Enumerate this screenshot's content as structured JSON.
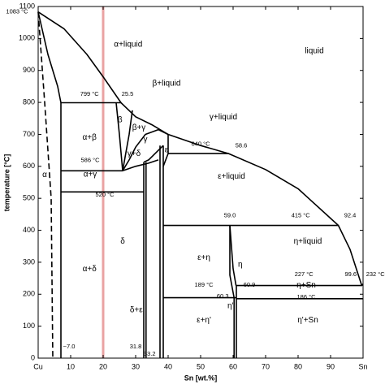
{
  "chart_data": {
    "type": "line",
    "xlabel": "Sn [wt.%]",
    "ylabel": "temperature [°C]",
    "xlim": [
      0,
      100
    ],
    "ylim": [
      0,
      1100
    ],
    "xticks": [
      {
        "value": 0,
        "label": "Cu"
      },
      10,
      20,
      30,
      40,
      50,
      60,
      70,
      80,
      90,
      {
        "value": 100,
        "label": "Sn"
      }
    ],
    "yticks": [
      0,
      100,
      200,
      300,
      400,
      500,
      600,
      700,
      800,
      900,
      1000,
      1100
    ],
    "grid": false,
    "vline": {
      "x": 20,
      "color": "#e9a3a3"
    },
    "series": [
      {
        "color": "#000000",
        "x": [
          0,
          8,
          15,
          20,
          25.5,
          30,
          35,
          40,
          50,
          58.6,
          70,
          80,
          92.4,
          96,
          99.6,
          100
        ],
        "values": [
          1083,
          1030,
          950,
          880,
          799,
          755,
          730,
          700,
          665,
          640,
          590,
          530,
          415,
          340,
          227,
          232
        ]
      },
      {
        "color": "#000000",
        "x": [
          0,
          3,
          6,
          7
        ],
        "values": [
          1083,
          950,
          850,
          799
        ]
      },
      {
        "color": "#000000",
        "x": [
          7,
          7
        ],
        "values": [
          799,
          0
        ]
      },
      {
        "color": "#000000",
        "dashed": true,
        "x": [
          0,
          2,
          4,
          4.5
        ],
        "values": [
          1083,
          800,
          500,
          0
        ]
      },
      {
        "color": "#000000",
        "x": [
          7,
          25.5
        ],
        "values": [
          799,
          799
        ]
      },
      {
        "color": "#000000",
        "x": [
          7,
          26
        ],
        "values": [
          586,
          586
        ]
      },
      {
        "color": "#000000",
        "x": [
          7,
          32.5
        ],
        "values": [
          520,
          520
        ]
      },
      {
        "color": "#000000",
        "x": [
          24,
          25,
          26
        ],
        "values": [
          799,
          700,
          586
        ]
      },
      {
        "color": "#000000",
        "x": [
          29,
          28,
          26
        ],
        "values": [
          775,
          700,
          586
        ]
      },
      {
        "color": "#000000",
        "x": [
          26,
          28,
          30,
          33,
          37,
          40
        ],
        "values": [
          586,
          620,
          660,
          700,
          715,
          700
        ]
      },
      {
        "color": "#000000",
        "x": [
          40,
          40,
          38.5
        ],
        "values": [
          700,
          640,
          600
        ]
      },
      {
        "color": "#000000",
        "x": [
          26,
          30,
          34,
          37
        ],
        "values": [
          586,
          600,
          610,
          620
        ]
      },
      {
        "color": "#000000",
        "x": [
          32.5,
          34,
          37,
          38.5
        ],
        "values": [
          613,
          620,
          650,
          665
        ]
      },
      {
        "color": "#000000",
        "x": [
          32.5,
          32.5
        ],
        "values": [
          613,
          0
        ]
      },
      {
        "color": "#000000",
        "x": [
          33.2,
          33.2
        ],
        "values": [
          613,
          0
        ]
      },
      {
        "color": "#000000",
        "x": [
          37.5,
          37.5
        ],
        "values": [
          665,
          0
        ]
      },
      {
        "color": "#000000",
        "x": [
          38.5,
          38.5
        ],
        "values": [
          665,
          0
        ]
      },
      {
        "color": "#000000",
        "x": [
          40,
          58.6
        ],
        "values": [
          640,
          640
        ]
      },
      {
        "color": "#000000",
        "x": [
          38.5,
          92.4
        ],
        "values": [
          415,
          415
        ]
      },
      {
        "color": "#000000",
        "x": [
          59,
          59,
          60.3
        ],
        "values": [
          415,
          260,
          189
        ]
      },
      {
        "color": "#000000",
        "x": [
          59,
          60,
          60.9
        ],
        "values": [
          415,
          280,
          227
        ]
      },
      {
        "color": "#000000",
        "x": [
          60.9,
          99.6
        ],
        "values": [
          227,
          227
        ]
      },
      {
        "color": "#000000",
        "x": [
          38.5,
          61
        ],
        "values": [
          189,
          189
        ]
      },
      {
        "color": "#000000",
        "x": [
          61,
          100
        ],
        "values": [
          186,
          186
        ]
      },
      {
        "color": "#000000",
        "x": [
          60.3,
          60.3
        ],
        "values": [
          189,
          0
        ]
      },
      {
        "color": "#000000",
        "x": [
          61,
          61
        ],
        "values": [
          227,
          0
        ]
      }
    ],
    "annotations": [
      {
        "text": "1083 °C",
        "x": -6.5,
        "y": 1083
      },
      {
        "text": "liquid",
        "x": 85,
        "y": 960
      },
      {
        "text": "α+liquid",
        "x": 27.7,
        "y": 981
      },
      {
        "text": "β+liquid",
        "x": 39.5,
        "y": 859
      },
      {
        "text": "799 °C",
        "x": 15.8,
        "y": 826
      },
      {
        "text": "25.5",
        "x": 27.5,
        "y": 826
      },
      {
        "text": "γ+liquid",
        "x": 57,
        "y": 753
      },
      {
        "text": "β",
        "x": 25.2,
        "y": 745
      },
      {
        "text": "β+γ",
        "x": 31,
        "y": 720
      },
      {
        "text": "γ",
        "x": 33,
        "y": 684
      },
      {
        "text": "α+β",
        "x": 15.8,
        "y": 690
      },
      {
        "text": "640 °C",
        "x": 50,
        "y": 669
      },
      {
        "text": "58.6",
        "x": 62.5,
        "y": 664
      },
      {
        "text": "ε",
        "x": 39.5,
        "y": 651
      },
      {
        "text": "586 °C",
        "x": 16,
        "y": 618
      },
      {
        "text": "γ+δ",
        "x": 29.5,
        "y": 639
      },
      {
        "text": "α+γ",
        "x": 16,
        "y": 575
      },
      {
        "text": "520 °C",
        "x": 20.5,
        "y": 510
      },
      {
        "text": "α",
        "x": 2,
        "y": 573
      },
      {
        "text": "ε+liquid",
        "x": 59.5,
        "y": 568
      },
      {
        "text": "59.0",
        "x": 59,
        "y": 446
      },
      {
        "text": "415 °C",
        "x": 80.8,
        "y": 446
      },
      {
        "text": "92.4",
        "x": 96,
        "y": 446
      },
      {
        "text": "η+liquid",
        "x": 83,
        "y": 365
      },
      {
        "text": "δ",
        "x": 26,
        "y": 365
      },
      {
        "text": "ε+η",
        "x": 51,
        "y": 314
      },
      {
        "text": "α+δ",
        "x": 15.8,
        "y": 279
      },
      {
        "text": "η",
        "x": 62.2,
        "y": 292
      },
      {
        "text": "227 °C",
        "x": 81.8,
        "y": 261
      },
      {
        "text": "99.6",
        "x": 96.2,
        "y": 261
      },
      {
        "text": "232 °C",
        "x": 103.8,
        "y": 261
      },
      {
        "text": "189 °C",
        "x": 51,
        "y": 228
      },
      {
        "text": "60.9",
        "x": 65,
        "y": 228
      },
      {
        "text": "η+Sn",
        "x": 82.5,
        "y": 228
      },
      {
        "text": "60.3",
        "x": 56.8,
        "y": 193
      },
      {
        "text": "186 °C",
        "x": 82.5,
        "y": 190
      },
      {
        "text": "δ+ε",
        "x": 30.2,
        "y": 150
      },
      {
        "text": "η'",
        "x": 59.2,
        "y": 163
      },
      {
        "text": "ε+η'",
        "x": 51,
        "y": 119
      },
      {
        "text": "η'+Sn",
        "x": 83,
        "y": 119
      },
      {
        "text": "~7.0",
        "x": 9.5,
        "y": 35
      },
      {
        "text": "31.8",
        "x": 30,
        "y": 35
      },
      {
        "text": "33.2",
        "x": 34.3,
        "y": 13
      }
    ]
  }
}
